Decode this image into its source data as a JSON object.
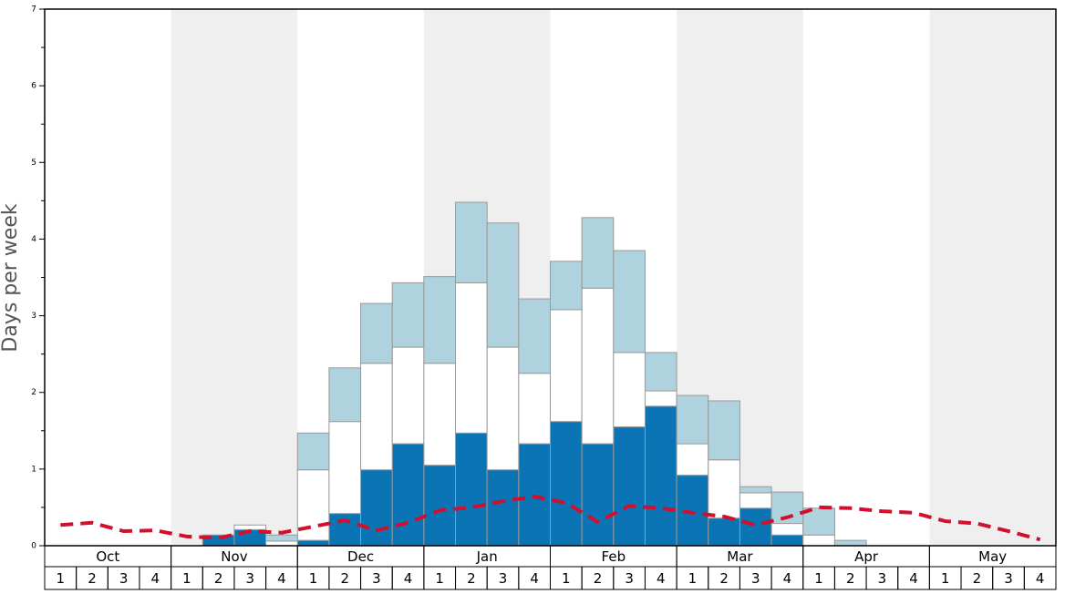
{
  "chart_data": {
    "type": "bar",
    "stacked": true,
    "y_label": "Days per week",
    "months": [
      "Oct",
      "Nov",
      "Dec",
      "Jan",
      "Feb",
      "Mar",
      "Apr",
      "May"
    ],
    "categories": [
      "1",
      "2",
      "3",
      "4",
      "1",
      "2",
      "3",
      "4",
      "1",
      "2",
      "3",
      "4",
      "1",
      "2",
      "3",
      "4",
      "1",
      "2",
      "3",
      "4",
      "1",
      "2",
      "3",
      "4",
      "1",
      "2",
      "3",
      "4",
      "1",
      "2",
      "3",
      "4"
    ],
    "series": [
      {
        "color": "#0a74b4",
        "values": [
          0,
          0,
          0,
          0,
          0,
          0.14,
          0.21,
          0,
          0.07,
          0.42,
          0.99,
          1.33,
          1.05,
          1.47,
          0.99,
          1.33,
          1.62,
          1.33,
          1.55,
          1.82,
          0.92,
          0.36,
          0.49,
          0.14,
          0,
          0,
          0,
          0,
          0,
          0,
          0,
          0
        ]
      },
      {
        "color": "#ffffff",
        "values": [
          0,
          0,
          0,
          0,
          0,
          0,
          0.06,
          0.06,
          0.92,
          1.2,
          1.39,
          1.26,
          1.33,
          1.96,
          1.6,
          0.92,
          1.46,
          2.03,
          0.97,
          0.2,
          0.41,
          0.76,
          0.2,
          0.15,
          0.14,
          0,
          0,
          0,
          0,
          0,
          0,
          0
        ]
      },
      {
        "color": "#aed3df",
        "values": [
          0,
          0,
          0,
          0,
          0,
          0,
          0,
          0.08,
          0.48,
          0.7,
          0.78,
          0.84,
          1.13,
          1.05,
          1.62,
          0.97,
          0.63,
          0.92,
          1.33,
          0.5,
          0.63,
          0.77,
          0.08,
          0.41,
          0.35,
          0.07,
          0,
          0,
          0,
          0,
          0,
          0
        ]
      }
    ],
    "line": {
      "color": "#d0102c",
      "dashed": true,
      "values": [
        0.27,
        0.3,
        0.19,
        0.2,
        0.12,
        0.1,
        0.19,
        0.17,
        0.25,
        0.33,
        0.2,
        0.3,
        0.46,
        0.5,
        0.58,
        0.64,
        0.56,
        0.31,
        0.52,
        0.49,
        0.43,
        0.38,
        0.27,
        0.37,
        0.5,
        0.49,
        0.45,
        0.43,
        0.32,
        0.29,
        0.19,
        0.08
      ]
    },
    "ylim": [
      0,
      7
    ],
    "yticks": [
      0,
      1,
      2,
      3,
      4,
      5,
      6,
      7
    ],
    "yminorticks": [
      0.5,
      1.5,
      2.5,
      3.5,
      4.5,
      5.5,
      6.5
    ],
    "band_color": "#efefef"
  }
}
